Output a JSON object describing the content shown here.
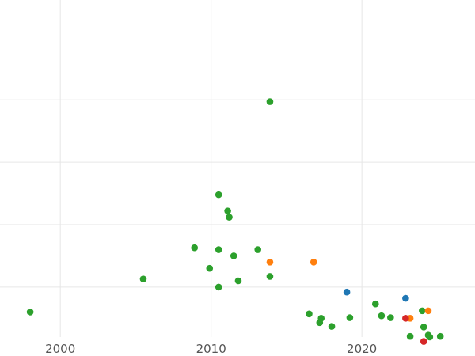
{
  "chart_data": {
    "type": "scatter",
    "title": "",
    "xlabel": "",
    "ylabel": "",
    "xlim": [
      1996,
      2027.5
    ],
    "ylim": [
      0,
      5.4
    ],
    "x_ticks": [
      2000,
      2010,
      2020
    ],
    "x_tick_labels": [
      "2000",
      "2010",
      "2020"
    ],
    "y_gridlines": [
      0.8,
      1.8,
      2.8,
      3.8
    ],
    "grid": true,
    "legend": "none",
    "series": [
      {
        "color": "#2ca02c",
        "points": [
          [
            1998.0,
            0.4
          ],
          [
            2005.5,
            0.93
          ],
          [
            2008.9,
            1.43
          ],
          [
            2009.9,
            1.1
          ],
          [
            2010.5,
            2.28
          ],
          [
            2010.5,
            1.4
          ],
          [
            2010.5,
            0.8
          ],
          [
            2011.1,
            2.02
          ],
          [
            2011.2,
            1.92
          ],
          [
            2011.5,
            1.3
          ],
          [
            2011.8,
            0.9
          ],
          [
            2013.1,
            1.4
          ],
          [
            2013.9,
            3.77
          ],
          [
            2013.9,
            0.97
          ],
          [
            2016.5,
            0.37
          ],
          [
            2017.2,
            0.23
          ],
          [
            2017.3,
            0.3
          ],
          [
            2018.0,
            0.17
          ],
          [
            2019.2,
            0.31
          ],
          [
            2020.9,
            0.53
          ],
          [
            2021.3,
            0.34
          ],
          [
            2021.9,
            0.31
          ],
          [
            2023.2,
            0.01
          ],
          [
            2024.0,
            0.42
          ],
          [
            2024.1,
            0.16
          ],
          [
            2024.4,
            0.03
          ],
          [
            2024.5,
            0.0
          ],
          [
            2025.2,
            0.01
          ]
        ]
      },
      {
        "color": "#ff7f0e",
        "points": [
          [
            2013.9,
            1.2
          ],
          [
            2016.8,
            1.2
          ],
          [
            2023.2,
            0.3
          ],
          [
            2024.4,
            0.42
          ]
        ]
      },
      {
        "color": "#1f77b4",
        "points": [
          [
            2019.0,
            0.72
          ],
          [
            2022.9,
            0.62
          ]
        ]
      },
      {
        "color": "#d62728",
        "points": [
          [
            2022.9,
            0.3
          ],
          [
            2024.1,
            -0.07
          ]
        ]
      }
    ]
  }
}
